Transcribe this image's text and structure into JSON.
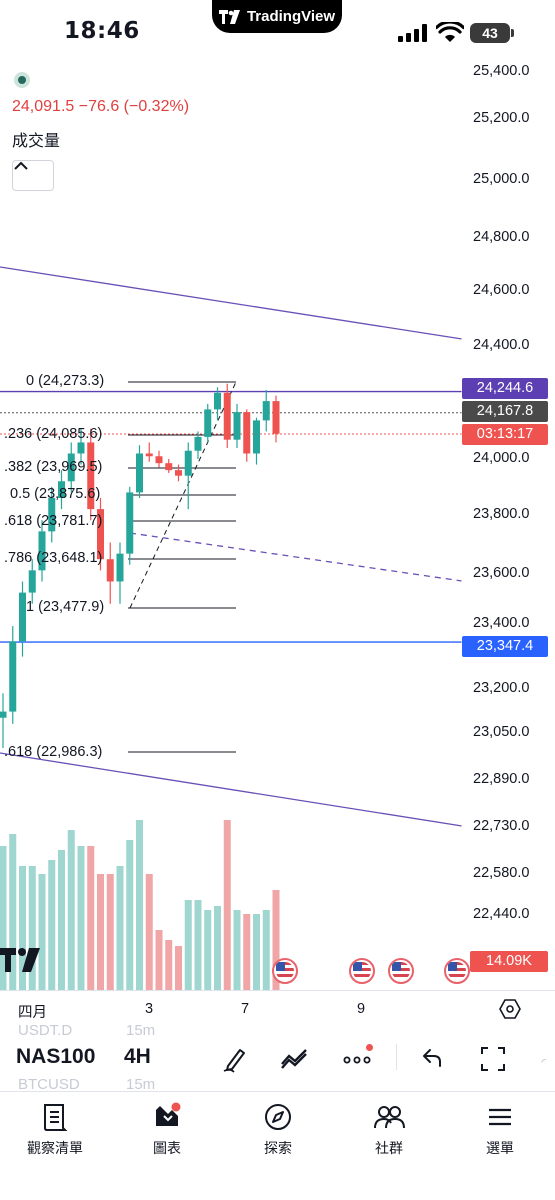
{
  "status_bar": {
    "time": "18:46",
    "app_banner": "TradingView",
    "battery": "43"
  },
  "legend": {
    "quote": "24,091.5  −76.6 (−0.32%)",
    "volume_label": "成交量"
  },
  "price_axis": {
    "labels": [
      "25,400.0",
      "25,200.0",
      "25,000.0",
      "24,800.0",
      "24,600.0",
      "24,400.0",
      "24,000.0",
      "23,800.0",
      "23,600.0",
      "23,400.0",
      "23,200.0",
      "23,050.0",
      "22,890.0",
      "22,730.0",
      "22,580.0",
      "22,440.0"
    ],
    "tags": {
      "resistance": "24,244.6",
      "last_price": "24,167.8",
      "countdown": "03:13:17",
      "support": "23,347.4",
      "volume": "14.09K"
    }
  },
  "fibonacci": {
    "levels": [
      "0 (24,273.3)",
      ".236 (24,085.6)",
      ".382 (23,969.5)",
      "0.5 (23,875.6)",
      ".618 (23,781.7)",
      ".786 (23,648.1)",
      "1 (23,477.9)",
      ".618 (22,986.3)"
    ]
  },
  "time_axis": {
    "labels": [
      "四月",
      "3",
      "7",
      "9"
    ]
  },
  "toolbar": {
    "symbol": "NAS100",
    "interval": "4H",
    "ghost_1": "USDT.D",
    "ghost_1_interval": "15m",
    "ghost_2": "BTCUSD",
    "ghost_2_interval": "15m"
  },
  "bottom_nav": {
    "items": [
      {
        "label": "觀察清單",
        "icon": "watchlist-icon"
      },
      {
        "label": "圖表",
        "icon": "chart-icon"
      },
      {
        "label": "探索",
        "icon": "compass-icon"
      },
      {
        "label": "社群",
        "icon": "community-icon"
      },
      {
        "label": "選單",
        "icon": "menu-icon"
      }
    ]
  },
  "colors": {
    "up": "#26a69a",
    "down": "#ef5350",
    "up_volume": "#9fd6cf",
    "down_volume": "#f0a6a6",
    "trend_line": "#6a4fb6",
    "support_line": "#2962ff",
    "resistance_tag": "#5b3fb3",
    "last_price_tag": "#4a4a4a",
    "countdown_tag": "#ef5350",
    "support_tag": "#2962ff"
  },
  "chart_data": {
    "type": "candlestick",
    "symbol": "NAS100",
    "interval": "4H",
    "price_range": [
      22440,
      25400
    ],
    "candles": [
      {
        "o": 23100,
        "h": 23180,
        "l": 23000,
        "c": 23120
      },
      {
        "o": 23120,
        "h": 23400,
        "l": 23080,
        "c": 23350
      },
      {
        "o": 23350,
        "h": 23560,
        "l": 23300,
        "c": 23520
      },
      {
        "o": 23520,
        "h": 23640,
        "l": 23480,
        "c": 23600
      },
      {
        "o": 23600,
        "h": 23780,
        "l": 23560,
        "c": 23740
      },
      {
        "o": 23740,
        "h": 23900,
        "l": 23700,
        "c": 23860
      },
      {
        "o": 23860,
        "h": 23960,
        "l": 23820,
        "c": 23920
      },
      {
        "o": 23920,
        "h": 24060,
        "l": 23880,
        "c": 24020
      },
      {
        "o": 24020,
        "h": 24110,
        "l": 23980,
        "c": 24060
      },
      {
        "o": 24060,
        "h": 24110,
        "l": 23780,
        "c": 23820
      },
      {
        "o": 23820,
        "h": 23860,
        "l": 23600,
        "c": 23640
      },
      {
        "o": 23640,
        "h": 23700,
        "l": 23480,
        "c": 23560
      },
      {
        "o": 23560,
        "h": 23700,
        "l": 23480,
        "c": 23660
      },
      {
        "o": 23660,
        "h": 23900,
        "l": 23620,
        "c": 23880
      },
      {
        "o": 23880,
        "h": 24050,
        "l": 23860,
        "c": 24020
      },
      {
        "o": 24020,
        "h": 24060,
        "l": 23990,
        "c": 24010
      },
      {
        "o": 24010,
        "h": 24030,
        "l": 23970,
        "c": 23985
      },
      {
        "o": 23985,
        "h": 24000,
        "l": 23950,
        "c": 23960
      },
      {
        "o": 23960,
        "h": 23980,
        "l": 23920,
        "c": 23940
      },
      {
        "o": 23940,
        "h": 24060,
        "l": 23820,
        "c": 24030
      },
      {
        "o": 24030,
        "h": 24100,
        "l": 24000,
        "c": 24080
      },
      {
        "o": 24080,
        "h": 24200,
        "l": 24060,
        "c": 24180
      },
      {
        "o": 24180,
        "h": 24260,
        "l": 24140,
        "c": 24240
      },
      {
        "o": 24240,
        "h": 24273,
        "l": 24040,
        "c": 24070
      },
      {
        "o": 24070,
        "h": 24200,
        "l": 24040,
        "c": 24170
      },
      {
        "o": 24170,
        "h": 24180,
        "l": 23990,
        "c": 24020
      },
      {
        "o": 24020,
        "h": 24150,
        "l": 23980,
        "c": 24140
      },
      {
        "o": 24140,
        "h": 24250,
        "l": 24100,
        "c": 24210
      },
      {
        "o": 24210,
        "h": 24230,
        "l": 24060,
        "c": 24091.5
      }
    ],
    "volume": [
      0.72,
      0.78,
      0.62,
      0.62,
      0.58,
      0.65,
      0.7,
      0.8,
      0.72,
      0.72,
      0.58,
      0.58,
      0.62,
      0.75,
      0.85,
      0.58,
      0.3,
      0.25,
      0.22,
      0.45,
      0.45,
      0.4,
      0.42,
      0.85,
      0.4,
      0.38,
      0.38,
      0.4,
      0.5
    ],
    "horizontal_lines": {
      "resistance": 24244.6,
      "last_price": 24167.8,
      "support": 23347.4
    }
  }
}
